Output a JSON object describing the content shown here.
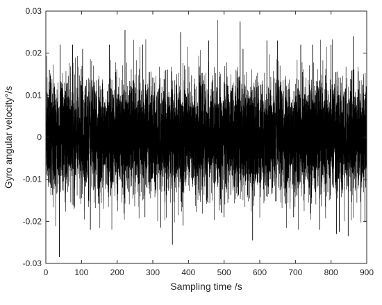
{
  "chart_data": {
    "type": "line",
    "title": "",
    "xlabel": "Sampling time /s",
    "ylabel": "Gyro angular velocity°/s",
    "xlim": [
      0,
      900
    ],
    "ylim": [
      -0.03,
      0.03
    ],
    "xticks": [
      0,
      100,
      200,
      300,
      400,
      500,
      600,
      700,
      800,
      900
    ],
    "yticks": [
      -0.03,
      -0.02,
      -0.01,
      0,
      0.01,
      0.02,
      0.03
    ],
    "xtick_labels": [
      "0",
      "100",
      "200",
      "300",
      "400",
      "500",
      "600",
      "700",
      "800",
      "900"
    ],
    "ytick_labels": [
      "-0.03",
      "-0.02",
      "-0.01",
      "0",
      "0.01",
      "0.02",
      "0.03"
    ],
    "grid": false,
    "legend": "none",
    "series": [
      {
        "color": "#000000",
        "description_stats": {
          "mean": 0.0,
          "std_approx": 0.0065
        },
        "peaks": [
          {
            "x": 10,
            "y": 0.016
          },
          {
            "x": 38,
            "y": -0.0285
          },
          {
            "x": 40,
            "y": 0.022
          },
          {
            "x": 75,
            "y": 0.022
          },
          {
            "x": 103,
            "y": 0.021
          },
          {
            "x": 125,
            "y": -0.022
          },
          {
            "x": 178,
            "y": 0.022
          },
          {
            "x": 222,
            "y": 0.0255
          },
          {
            "x": 272,
            "y": 0.022
          },
          {
            "x": 278,
            "y": -0.019
          },
          {
            "x": 322,
            "y": -0.0215
          },
          {
            "x": 355,
            "y": -0.0255
          },
          {
            "x": 378,
            "y": 0.025
          },
          {
            "x": 385,
            "y": -0.021
          },
          {
            "x": 457,
            "y": 0.023
          },
          {
            "x": 500,
            "y": -0.019
          },
          {
            "x": 545,
            "y": 0.0275
          },
          {
            "x": 553,
            "y": 0.021
          },
          {
            "x": 580,
            "y": -0.0245
          },
          {
            "x": 620,
            "y": 0.023
          },
          {
            "x": 650,
            "y": 0.023
          },
          {
            "x": 695,
            "y": -0.019
          },
          {
            "x": 715,
            "y": 0.022
          },
          {
            "x": 748,
            "y": 0.022
          },
          {
            "x": 768,
            "y": -0.022
          },
          {
            "x": 800,
            "y": 0.022
          },
          {
            "x": 815,
            "y": -0.023
          },
          {
            "x": 823,
            "y": -0.0225
          },
          {
            "x": 848,
            "y": -0.0235
          },
          {
            "x": 862,
            "y": 0.024
          },
          {
            "x": 895,
            "y": -0.02
          }
        ]
      }
    ]
  }
}
